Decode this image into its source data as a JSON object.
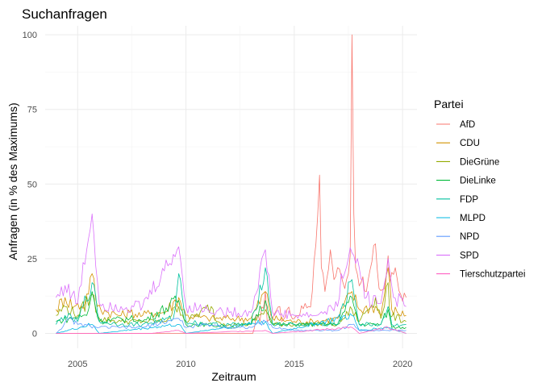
{
  "chart_data": {
    "type": "line",
    "title": "Suchanfragen",
    "xlabel": "Zeitraum",
    "ylabel": "Anfragen (in % des Maximums)",
    "x_range": [
      "2004-01",
      "2020-03"
    ],
    "xlim": [
      "2003-07",
      "2020-09"
    ],
    "ylim": [
      -5,
      103
    ],
    "x_ticks": [
      {
        "value": "2005-01",
        "label": "2005"
      },
      {
        "value": "2010-01",
        "label": "2010"
      },
      {
        "value": "2015-01",
        "label": "2015"
      },
      {
        "value": "2020-01",
        "label": "2020"
      }
    ],
    "y_ticks": [
      0,
      25,
      50,
      75,
      100
    ],
    "grid": true,
    "legend": {
      "title": "Partei",
      "position": "right"
    },
    "series": [
      {
        "name": "AfD",
        "color": "#F8766D",
        "points": [
          [
            "2004-01",
            0
          ],
          [
            "2013-02",
            0
          ],
          [
            "2013-03",
            2
          ],
          [
            "2013-04",
            6
          ],
          [
            "2013-06",
            4
          ],
          [
            "2013-09",
            14
          ],
          [
            "2013-10",
            4
          ],
          [
            "2014-05",
            9
          ],
          [
            "2014-06",
            4
          ],
          [
            "2014-09",
            8
          ],
          [
            "2015-01",
            5
          ],
          [
            "2015-07",
            10
          ],
          [
            "2015-09",
            9
          ],
          [
            "2015-11",
            14
          ],
          [
            "2016-01",
            30
          ],
          [
            "2016-03",
            53
          ],
          [
            "2016-04",
            22
          ],
          [
            "2016-06",
            14
          ],
          [
            "2016-09",
            28
          ],
          [
            "2016-11",
            18
          ],
          [
            "2017-01",
            22
          ],
          [
            "2017-04",
            17
          ],
          [
            "2017-06",
            18
          ],
          [
            "2017-08",
            26
          ],
          [
            "2017-09",
            100
          ],
          [
            "2017-10",
            40
          ],
          [
            "2017-11",
            22
          ],
          [
            "2018-02",
            17
          ],
          [
            "2018-05",
            14
          ],
          [
            "2018-08",
            24
          ],
          [
            "2018-10",
            30
          ],
          [
            "2018-12",
            15
          ],
          [
            "2019-03",
            15
          ],
          [
            "2019-05",
            26
          ],
          [
            "2019-06",
            17
          ],
          [
            "2019-09",
            22
          ],
          [
            "2019-12",
            13
          ],
          [
            "2020-03",
            12
          ]
        ]
      },
      {
        "name": "CDU",
        "color": "#D39200",
        "points": [
          [
            "2004-01",
            8
          ],
          [
            "2004-06",
            12
          ],
          [
            "2004-11",
            9
          ],
          [
            "2005-05",
            10
          ],
          [
            "2005-09",
            20
          ],
          [
            "2005-12",
            9
          ],
          [
            "2006-06",
            7
          ],
          [
            "2007-01",
            6
          ],
          [
            "2007-06",
            7
          ],
          [
            "2008-01",
            6
          ],
          [
            "2008-06",
            7
          ],
          [
            "2009-01",
            7
          ],
          [
            "2009-09",
            12
          ],
          [
            "2010-01",
            6
          ],
          [
            "2011-01",
            5
          ],
          [
            "2012-01",
            5
          ],
          [
            "2013-01",
            5
          ],
          [
            "2013-09",
            14
          ],
          [
            "2014-01",
            5
          ],
          [
            "2015-01",
            4
          ],
          [
            "2016-01",
            4
          ],
          [
            "2017-01",
            5
          ],
          [
            "2017-09",
            14
          ],
          [
            "2018-01",
            8
          ],
          [
            "2018-10",
            9
          ],
          [
            "2019-01",
            6
          ],
          [
            "2019-05",
            22
          ],
          [
            "2019-07",
            8
          ],
          [
            "2020-03",
            6
          ]
        ]
      },
      {
        "name": "DieGrüne",
        "color": "#93AA00",
        "points": [
          [
            "2004-01",
            6
          ],
          [
            "2004-06",
            9
          ],
          [
            "2005-01",
            6
          ],
          [
            "2005-09",
            13
          ],
          [
            "2006-01",
            5
          ],
          [
            "2007-01",
            4
          ],
          [
            "2008-01",
            4
          ],
          [
            "2009-01",
            4
          ],
          [
            "2009-09",
            9
          ],
          [
            "2010-01",
            4
          ],
          [
            "2011-03",
            9
          ],
          [
            "2011-06",
            4
          ],
          [
            "2012-01",
            3
          ],
          [
            "2013-01",
            3
          ],
          [
            "2013-09",
            8
          ],
          [
            "2014-01",
            3
          ],
          [
            "2015-01",
            3
          ],
          [
            "2016-01",
            3
          ],
          [
            "2017-01",
            3
          ],
          [
            "2017-09",
            8
          ],
          [
            "2018-01",
            4
          ],
          [
            "2018-10",
            12
          ],
          [
            "2019-01",
            5
          ],
          [
            "2019-05",
            17
          ],
          [
            "2019-06",
            6
          ],
          [
            "2020-03",
            4
          ]
        ]
      },
      {
        "name": "DieLinke",
        "color": "#00BA38",
        "points": [
          [
            "2004-01",
            4
          ],
          [
            "2005-06",
            6
          ],
          [
            "2005-09",
            14
          ],
          [
            "2006-01",
            4
          ],
          [
            "2007-06",
            5
          ],
          [
            "2008-01",
            4
          ],
          [
            "2009-09",
            11
          ],
          [
            "2010-01",
            3
          ],
          [
            "2011-01",
            3
          ],
          [
            "2012-01",
            2
          ],
          [
            "2013-01",
            3
          ],
          [
            "2013-09",
            11
          ],
          [
            "2014-01",
            3
          ],
          [
            "2015-01",
            3
          ],
          [
            "2016-01",
            3
          ],
          [
            "2017-01",
            3
          ],
          [
            "2017-09",
            12
          ],
          [
            "2018-01",
            3
          ],
          [
            "2019-01",
            3
          ],
          [
            "2019-05",
            8
          ],
          [
            "2019-07",
            2
          ],
          [
            "2020-03",
            2
          ]
        ]
      },
      {
        "name": "FDP",
        "color": "#00C19F",
        "points": [
          [
            "2004-01",
            3
          ],
          [
            "2004-06",
            6
          ],
          [
            "2005-01",
            4
          ],
          [
            "2005-09",
            17
          ],
          [
            "2006-01",
            4
          ],
          [
            "2007-01",
            3
          ],
          [
            "2008-01",
            3
          ],
          [
            "2009-06",
            5
          ],
          [
            "2009-09",
            20
          ],
          [
            "2010-01",
            4
          ],
          [
            "2011-01",
            3
          ],
          [
            "2012-01",
            3
          ],
          [
            "2013-01",
            3
          ],
          [
            "2013-09",
            22
          ],
          [
            "2014-01",
            3
          ],
          [
            "2015-01",
            3
          ],
          [
            "2016-01",
            3
          ],
          [
            "2017-01",
            3
          ],
          [
            "2017-09",
            18
          ],
          [
            "2018-01",
            3
          ],
          [
            "2019-01",
            3
          ],
          [
            "2019-05",
            9
          ],
          [
            "2019-07",
            3
          ],
          [
            "2020-03",
            3
          ]
        ]
      },
      {
        "name": "MLPD",
        "color": "#00B9E3",
        "points": [
          [
            "2004-01",
            0
          ],
          [
            "2005-09",
            3
          ],
          [
            "2006-01",
            0
          ],
          [
            "2009-09",
            3
          ],
          [
            "2010-01",
            0
          ],
          [
            "2013-09",
            4
          ],
          [
            "2014-01",
            0
          ],
          [
            "2017-09",
            6
          ],
          [
            "2018-01",
            1
          ],
          [
            "2019-05",
            2
          ],
          [
            "2020-03",
            0
          ]
        ]
      },
      {
        "name": "NPD",
        "color": "#619CFF",
        "points": [
          [
            "2004-01",
            0
          ],
          [
            "2004-09",
            5
          ],
          [
            "2005-01",
            3
          ],
          [
            "2006-01",
            2
          ],
          [
            "2007-01",
            2
          ],
          [
            "2008-01",
            2
          ],
          [
            "2009-09",
            5
          ],
          [
            "2010-01",
            2
          ],
          [
            "2011-01",
            3
          ],
          [
            "2012-01",
            2
          ],
          [
            "2013-01",
            2
          ],
          [
            "2013-09",
            4
          ],
          [
            "2014-01",
            2
          ],
          [
            "2015-01",
            1
          ],
          [
            "2016-01",
            1
          ],
          [
            "2017-01",
            1
          ],
          [
            "2017-09",
            3
          ],
          [
            "2018-01",
            1
          ],
          [
            "2019-01",
            1
          ],
          [
            "2020-03",
            1
          ]
        ]
      },
      {
        "name": "SPD",
        "color": "#DB72FB",
        "points": [
          [
            "2004-01",
            12
          ],
          [
            "2004-06",
            16
          ],
          [
            "2005-01",
            10
          ],
          [
            "2005-09",
            40
          ],
          [
            "2006-01",
            10
          ],
          [
            "2007-01",
            9
          ],
          [
            "2008-01",
            9
          ],
          [
            "2009-09",
            29
          ],
          [
            "2010-01",
            9
          ],
          [
            "2011-01",
            8
          ],
          [
            "2012-01",
            7
          ],
          [
            "2013-01",
            7
          ],
          [
            "2013-09",
            28
          ],
          [
            "2014-01",
            7
          ],
          [
            "2015-01",
            6
          ],
          [
            "2016-01",
            6
          ],
          [
            "2017-01",
            9
          ],
          [
            "2017-03",
            20
          ],
          [
            "2017-09",
            27
          ],
          [
            "2018-01",
            22
          ],
          [
            "2018-05",
            12
          ],
          [
            "2019-01",
            10
          ],
          [
            "2019-05",
            25
          ],
          [
            "2019-08",
            12
          ],
          [
            "2020-03",
            9
          ]
        ]
      },
      {
        "name": "Tierschutzpartei",
        "color": "#FF61C3",
        "points": [
          [
            "2004-01",
            0
          ],
          [
            "2008-06",
            0
          ],
          [
            "2009-09",
            1
          ],
          [
            "2010-01",
            0
          ],
          [
            "2013-09",
            1
          ],
          [
            "2014-01",
            0
          ],
          [
            "2017-09",
            2
          ],
          [
            "2018-01",
            0
          ],
          [
            "2019-05",
            2
          ],
          [
            "2020-03",
            0
          ]
        ]
      }
    ]
  }
}
